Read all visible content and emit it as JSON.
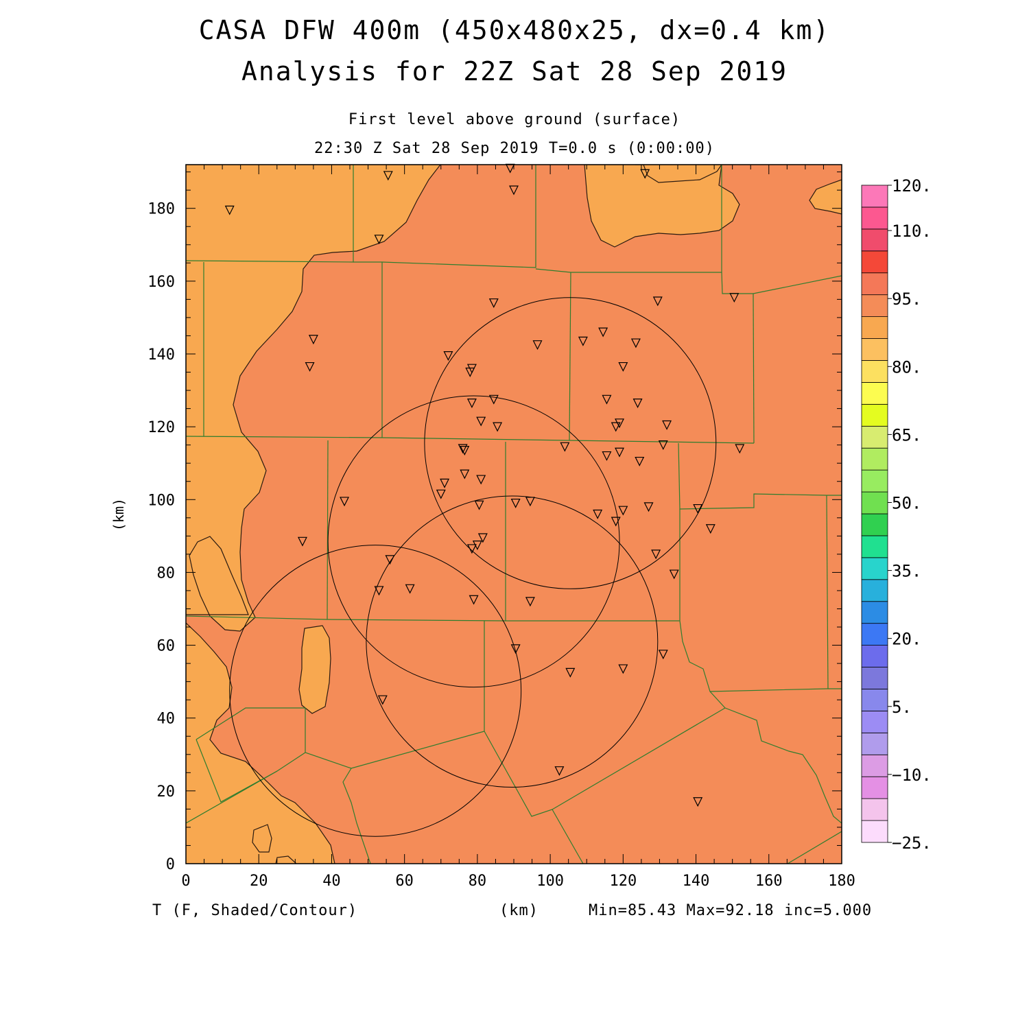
{
  "header": {
    "title_line1": "CASA DFW 400m (450x480x25, dx=0.4 km)",
    "title_line2": "Analysis for 22Z Sat 28 Sep 2019",
    "level": "First level above ground (surface)",
    "valid_time": "22:30 Z Sat 28 Sep 2019    T=0.0 s (0:00:00)"
  },
  "axes": {
    "x_label": "(km)",
    "y_label": "(km)",
    "x_range": [
      0,
      180
    ],
    "y_range": [
      0,
      192
    ],
    "x_ticks": [
      "0",
      "20",
      "40",
      "60",
      "80",
      "100",
      "120",
      "140",
      "160",
      "180"
    ],
    "y_ticks": [
      "0",
      "20",
      "40",
      "60",
      "80",
      "100",
      "120",
      "140",
      "160",
      "180"
    ]
  },
  "footer": {
    "variable": "T (F, Shaded/Contour)",
    "unit_label": "(km)",
    "stats": "Min=85.43 Max=92.18 inc=5.000"
  },
  "colorbar": {
    "labels": [
      "120.",
      "110.",
      "95.",
      "80.",
      "65.",
      "50.",
      "35.",
      "20.",
      "5.",
      "−10.",
      "−25."
    ],
    "label_values": [
      120,
      110,
      95,
      80,
      65,
      50,
      35,
      20,
      5,
      -10,
      -25
    ],
    "range": [
      -25,
      120
    ],
    "colors": [
      "#fcdcfc",
      "#f4c4ec",
      "#e490e4",
      "#dc9ce4",
      "#b09cec",
      "#9c8cf4",
      "#8888ec",
      "#7c78dc",
      "#6c6cec",
      "#3c78f4",
      "#2c8ce4",
      "#28b0dc",
      "#28d4cc",
      "#20e090",
      "#30d050",
      "#70e050",
      "#98ec60",
      "#b0ec60",
      "#d8ec70",
      "#e4fc20",
      "#fcfc50",
      "#fce060",
      "#fcc060",
      "#f8a850",
      "#f48c58",
      "#f47858",
      "#f44838",
      "#f04c6c",
      "#fc5890",
      "#fc78b8"
    ]
  },
  "chart_data": {
    "type": "heatmap",
    "field": "Surface temperature",
    "units": "F",
    "min": 85.43,
    "max": 92.18,
    "contour_interval": 5.0,
    "shaded_levels_present": [
      {
        "range": "85-90 F",
        "color": "#f8a850"
      },
      {
        "range": "90-95 F",
        "color": "#f48c58"
      }
    ],
    "radar_circles_km": [
      {
        "center": [
          105.5,
          115.5
        ],
        "radius": 40
      },
      {
        "center": [
          79,
          88.5
        ],
        "radius": 40
      },
      {
        "center": [
          52,
          47.5
        ],
        "radius": 40
      },
      {
        "center": [
          89.5,
          61
        ],
        "radius": 40
      }
    ],
    "station_markers_km": [
      [
        12,
        179.5
      ],
      [
        55.5,
        189
      ],
      [
        89,
        191
      ],
      [
        90,
        185
      ],
      [
        126,
        189.5
      ],
      [
        53,
        171.5
      ],
      [
        150.5,
        155.5
      ],
      [
        35,
        144
      ],
      [
        34,
        136.5
      ],
      [
        84.5,
        154
      ],
      [
        72,
        139.5
      ],
      [
        96.5,
        142.5
      ],
      [
        109,
        143.5
      ],
      [
        114.5,
        146
      ],
      [
        123.5,
        143
      ],
      [
        129.5,
        154.5
      ],
      [
        78.5,
        136
      ],
      [
        78,
        135
      ],
      [
        120,
        136.5
      ],
      [
        78.5,
        126.5
      ],
      [
        84.5,
        127.5
      ],
      [
        115.5,
        127.5
      ],
      [
        124,
        126.5
      ],
      [
        81,
        121.5
      ],
      [
        85.5,
        120
      ],
      [
        119,
        121
      ],
      [
        118,
        120
      ],
      [
        132,
        120.5
      ],
      [
        76,
        114
      ],
      [
        76.5,
        113.5
      ],
      [
        104,
        114.5
      ],
      [
        131,
        115
      ],
      [
        152,
        114
      ],
      [
        115.5,
        112
      ],
      [
        119,
        113
      ],
      [
        124.5,
        110.5
      ],
      [
        76.5,
        107
      ],
      [
        71,
        104.5
      ],
      [
        81,
        105.5
      ],
      [
        70,
        101.5
      ],
      [
        43.5,
        99.5
      ],
      [
        94.5,
        99.5
      ],
      [
        80.5,
        98.5
      ],
      [
        90.5,
        99
      ],
      [
        120,
        97
      ],
      [
        127,
        98
      ],
      [
        113,
        96
      ],
      [
        118,
        94
      ],
      [
        140.5,
        97.5
      ],
      [
        144,
        92
      ],
      [
        32,
        88.5
      ],
      [
        81.5,
        89.5
      ],
      [
        80,
        87.5
      ],
      [
        78.5,
        86.5
      ],
      [
        129,
        85
      ],
      [
        56,
        83.5
      ],
      [
        134,
        79.5
      ],
      [
        53,
        75
      ],
      [
        61.5,
        75.5
      ],
      [
        79,
        72.5
      ],
      [
        94.5,
        72
      ],
      [
        90.5,
        59
      ],
      [
        131,
        57.5
      ],
      [
        120,
        53.5
      ],
      [
        105.5,
        52.5
      ],
      [
        54,
        45
      ],
      [
        102.5,
        25.5
      ],
      [
        140.5,
        17
      ]
    ],
    "xlabel": "(km)",
    "ylabel": "(km)",
    "xlim": [
      0,
      180
    ],
    "ylim": [
      0,
      192
    ]
  }
}
